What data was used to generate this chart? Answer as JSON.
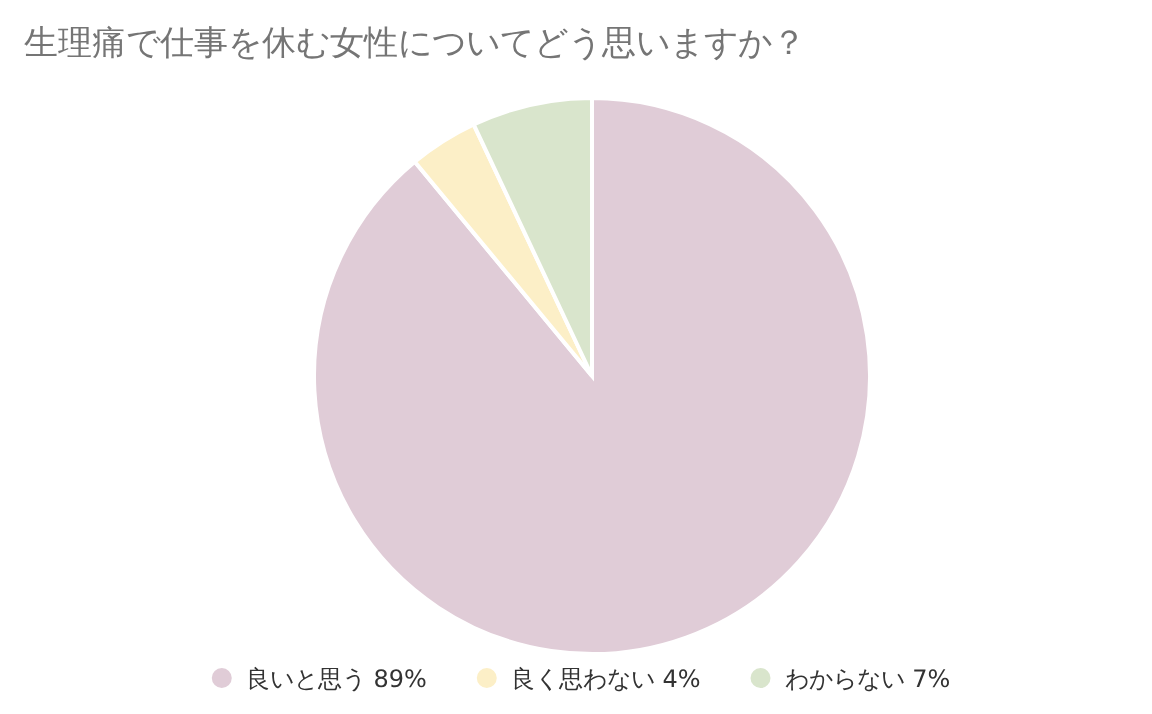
{
  "chart_data": {
    "type": "pie",
    "title": "生理痛で仕事を休む女性についてどう思いますか？",
    "categories": [
      "良いと思う 89%",
      "良く思わない 4%",
      "わからない 7%"
    ],
    "values": [
      89,
      4,
      7
    ],
    "colors": [
      "#e0ccd7",
      "#fcefc7",
      "#d9e5cc"
    ],
    "legend": "bottom"
  }
}
